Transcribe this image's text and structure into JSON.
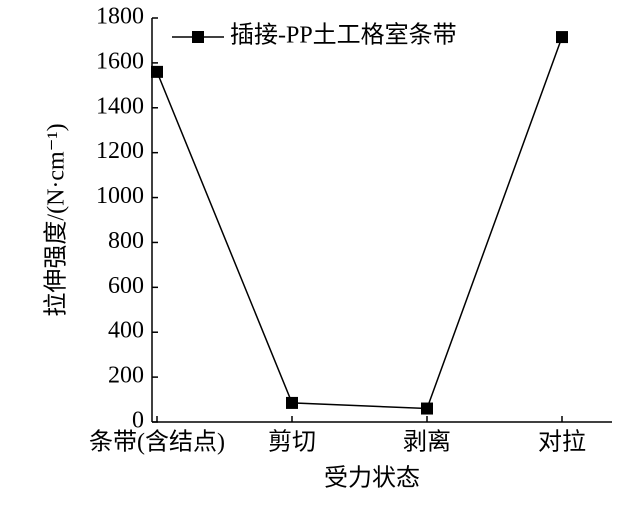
{
  "chart_data": {
    "type": "line",
    "categories": [
      "条带(含结点)",
      "剪切",
      "剥离",
      "对拉"
    ],
    "series": [
      {
        "name": "插接-PP土工格室条带",
        "color": "#000000",
        "values": [
          1560,
          85,
          60,
          1715
        ]
      }
    ],
    "xlabel": "受力状态",
    "ylabel": "拉伸强度/(N·cm⁻¹)",
    "ylim": [
      0,
      1800
    ],
    "yticks": [
      0,
      200,
      400,
      600,
      800,
      1000,
      1200,
      1400,
      1600,
      1800
    ],
    "legend": "upper left"
  }
}
